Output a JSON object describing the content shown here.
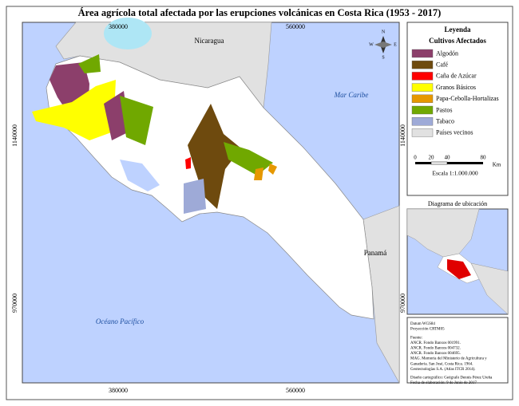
{
  "title": "Área agrícola total afectada por las erupciones volcánicas en Costa Rica (1953 - 2017)",
  "grid_labels": {
    "top": [
      "380000",
      "560000"
    ],
    "bottom": [
      "380000",
      "560000"
    ],
    "left": [
      "1140000",
      "970000"
    ],
    "right": [
      "1140000",
      "970000"
    ]
  },
  "places": {
    "nicaragua": "Nicaragua",
    "caribe": "Mar Caribe",
    "pacifico": "Océano Pacífico",
    "panama": "Panamá"
  },
  "north_arrow": {
    "n": "N",
    "s": "S",
    "e": "E",
    "w": "W"
  },
  "legend": {
    "title": "Leyenda",
    "subtitle": "Cultivos Afectados",
    "items": [
      {
        "label": "Algodón",
        "color": "#8c3f6b"
      },
      {
        "label": "Café",
        "color": "#6e4a0e"
      },
      {
        "label": "Caña de Azúcar",
        "color": "#ff0000"
      },
      {
        "label": "Granos Básicos",
        "color": "#ffff00"
      },
      {
        "label": "Papa-Cebolla-Hortalizas",
        "color": "#e69800"
      },
      {
        "label": "Pastos",
        "color": "#70a800"
      },
      {
        "label": "Tabaco",
        "color": "#9eaad7"
      },
      {
        "label": "Países vecinos",
        "color": "#e1e1e1"
      }
    ]
  },
  "scale": {
    "ticks": [
      "0",
      "20",
      "40",
      "80"
    ],
    "unit": "Km",
    "text": "Escala 1:1.000.000"
  },
  "inset": {
    "title": "Diagrama de ubicación"
  },
  "notes": [
    "Datum WGS84",
    "Proyección CRTM05",
    "Fuente:",
    "ANCR. Fondo Banxos 001991.",
    "ANCR. Fondo Banxos 004732.",
    "ANCR. Fondo Banxos 004695.",
    "MAG. Memoria del Ministerio de Agricultura y",
    "Ganadería. San José, Costa Rica. 1964.",
    "Geotecnologías S.A. (Atlas ITCR 2014).",
    "Diseño cartográfico: Geógrafo Dennis Pérez Ureña",
    "Fecha de elaboración: 9 de Junio de 2017"
  ]
}
